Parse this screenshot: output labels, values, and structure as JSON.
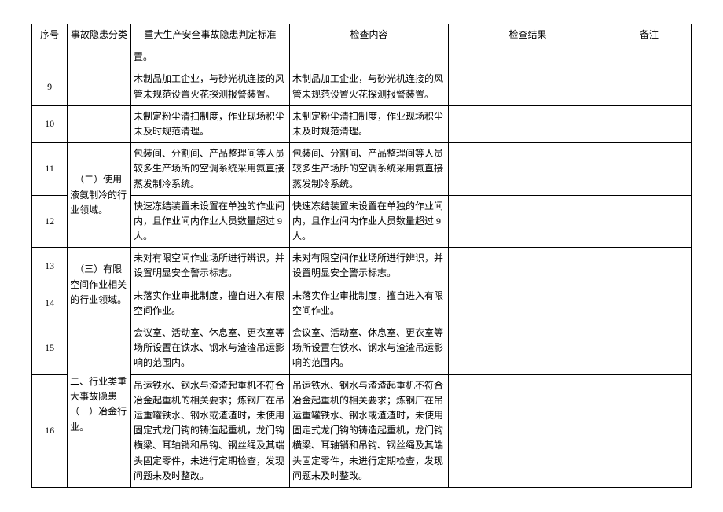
{
  "header": {
    "seq": "序号",
    "category": "事故隐患分类",
    "standard": "重大生产安全事故隐患判定标准",
    "check_content": "检查内容",
    "check_result": "检查结果",
    "note": "备注"
  },
  "rows": [
    {
      "seq": "",
      "category": "",
      "standard": "置。",
      "check_content": "",
      "check_result": "",
      "note": ""
    },
    {
      "seq": "9",
      "category": "",
      "standard": "木制品加工企业，与砂光机连接的风管未规范设置火花探测报警装置。",
      "check_content": "木制品加工企业，与砂光机连接的风管未规范设置火花探测报警装置。",
      "check_result": "",
      "note": ""
    },
    {
      "seq": "10",
      "category": "",
      "standard": "未制定粉尘清扫制度，作业现场积尘未及时规范清理。",
      "check_content": "未制定粉尘清扫制度，作业现场积尘未及时规范清理。",
      "check_result": "",
      "note": ""
    },
    {
      "seq": "11",
      "category": "　（二）使用液氨制冷的行业领域。",
      "standard": "包装间、分割间、产品整理间等人员较多生产场所的空调系统采用氨直接蒸发制冷系统。",
      "check_content": "包装间、分割间、产品整理间等人员较多生产场所的空调系统采用氨直接蒸发制冷系统。",
      "check_result": "",
      "note": ""
    },
    {
      "seq": "12",
      "category": "",
      "standard": "快速冻结装置未设置在单独的作业间内，且作业间内作业人员数量超过 9 人。",
      "check_content": "快速冻结装置未设置在单独的作业间内，且作业间内作业人员数量超过 9 人。",
      "check_result": "",
      "note": ""
    },
    {
      "seq": "13",
      "category": "　（三）有限空间作业相关的行业领域。",
      "standard": "未对有限空间作业场所进行辨识，并设置明显安全警示标志。",
      "check_content": "未对有限空间作业场所进行辨识，并设置明显安全警示标志。",
      "check_result": "",
      "note": ""
    },
    {
      "seq": "14",
      "category": "",
      "standard": "未落实作业审批制度，擅自进入有限空间作业。",
      "check_content": "未落实作业审批制度，擅自进入有限空间作业。",
      "check_result": "",
      "note": ""
    },
    {
      "seq": "15",
      "category": "二、行业类重大事故隐患　（一）冶金行业。",
      "standard": "会议室、活动室、休息室、更衣室等场所设置在铁水、钢水与渣渣吊运影响的范围内。",
      "check_content": "会议室、活动室、休息室、更衣室等场所设置在铁水、钢水与渣渣吊运影响的范围内。",
      "check_result": "",
      "note": ""
    },
    {
      "seq": "16",
      "category": "",
      "standard": "吊运铁水、钢水与渣渣起重机不符合冶金起重机的相关要求；炼钢厂在吊运重罐铁水、钢水或渣渣时，未使用固定式龙门钩的铸造起重机，龙门钩横梁、耳轴销和吊钩、钢丝绳及其端头固定零件，未进行定期检查，发现问题未及时整改。",
      "check_content": "吊运铁水、钢水与渣渣起重机不符合冶金起重机的相关要求；炼钢厂在吊运重罐铁水、钢水或渣渣时，未使用固定式龙门钩的铸造起重机，龙门钩横梁、耳轴销和吊钩、钢丝绳及其端头固定零件，未进行定期检查，发现问题未及时整改。",
      "check_result": "",
      "note": ""
    }
  ],
  "style": {
    "font_family": "SimSun",
    "font_size_pt": 12,
    "border_color": "#000000",
    "background_color": "#ffffff",
    "text_color": "#000000"
  }
}
